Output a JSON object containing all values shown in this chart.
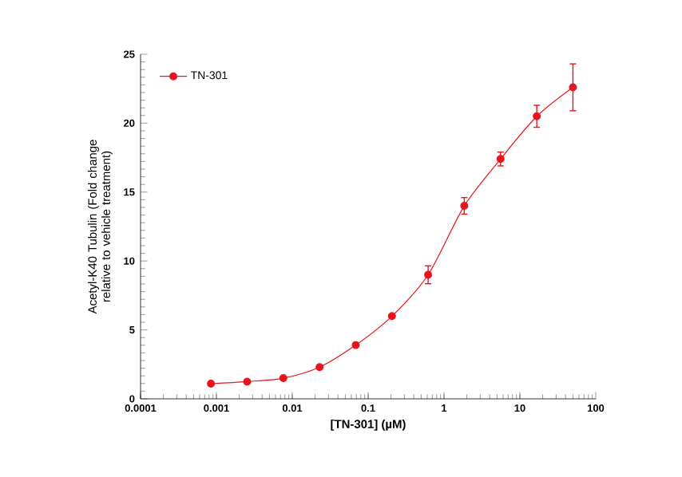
{
  "chart_data": {
    "type": "line",
    "xlabel": "[TN-301] (µM)",
    "ylabel": "Acetyl-K40 Tubulin (Fold change relative to vehicle treatment)",
    "x": [
      0.000847,
      0.00254,
      0.00762,
      0.0229,
      0.0686,
      0.206,
      0.617,
      1.85,
      5.56,
      16.7,
      50
    ],
    "series": [
      {
        "name": "TN-301",
        "color": "#e8141c",
        "values": [
          1.1,
          1.25,
          1.5,
          2.3,
          3.9,
          6.0,
          9.0,
          14.0,
          17.4,
          20.5,
          22.6
        ],
        "errors": [
          null,
          null,
          null,
          null,
          null,
          null,
          0.65,
          0.6,
          0.5,
          0.8,
          1.7
        ]
      }
    ],
    "log": "x",
    "xlim": [
      0.0001,
      100
    ],
    "xticks": [
      {
        "value": 0.0001,
        "label": "0.0001"
      },
      {
        "value": 0.001,
        "label": "0.001"
      },
      {
        "value": 0.01,
        "label": "0.01"
      },
      {
        "value": 0.1,
        "label": "0.1"
      },
      {
        "value": 1,
        "label": "1"
      },
      {
        "value": 10,
        "label": "10"
      },
      {
        "value": 100,
        "label": "100"
      }
    ],
    "ylim": [
      0,
      25
    ],
    "yticks": [
      0,
      5,
      10,
      15,
      20,
      25
    ],
    "grid": false,
    "legend": "top left",
    "marker": "circle",
    "line_style": "solid"
  }
}
